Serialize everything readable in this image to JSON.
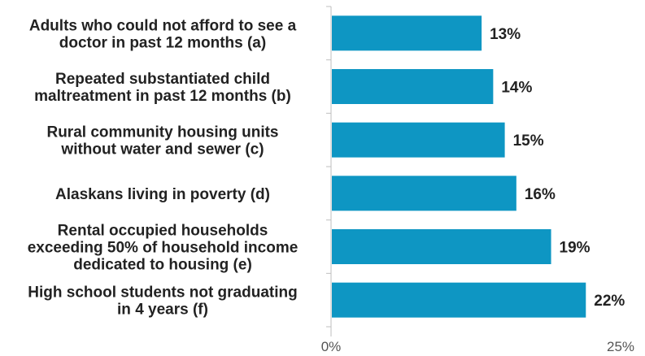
{
  "chart_data": {
    "type": "bar",
    "orientation": "horizontal",
    "categories": [
      "Adults who could not afford to see a\ndoctor in past 12 months (a)",
      "Repeated substantiated child\nmaltreatment in past 12 months (b)",
      "Rural community housing units\nwithout water and sewer  (c)",
      "Alaskans living in poverty (d)",
      "Rental occupied households\nexceeding 50% of household income\ndedicated to housing (e)",
      "High school students not graduating\nin 4 years (f)"
    ],
    "values": [
      13,
      14,
      15,
      16,
      19,
      22
    ],
    "value_labels": [
      "13%",
      "14%",
      "15%",
      "16%",
      "19%",
      "22%"
    ],
    "xlim": [
      0,
      25
    ],
    "x_ticks": [
      0,
      25
    ],
    "x_tick_labels": [
      "0%",
      "25%"
    ],
    "bar_color": "#0e96c3",
    "axis_color": "#bfbfbf",
    "grid": false,
    "legend": "none"
  }
}
